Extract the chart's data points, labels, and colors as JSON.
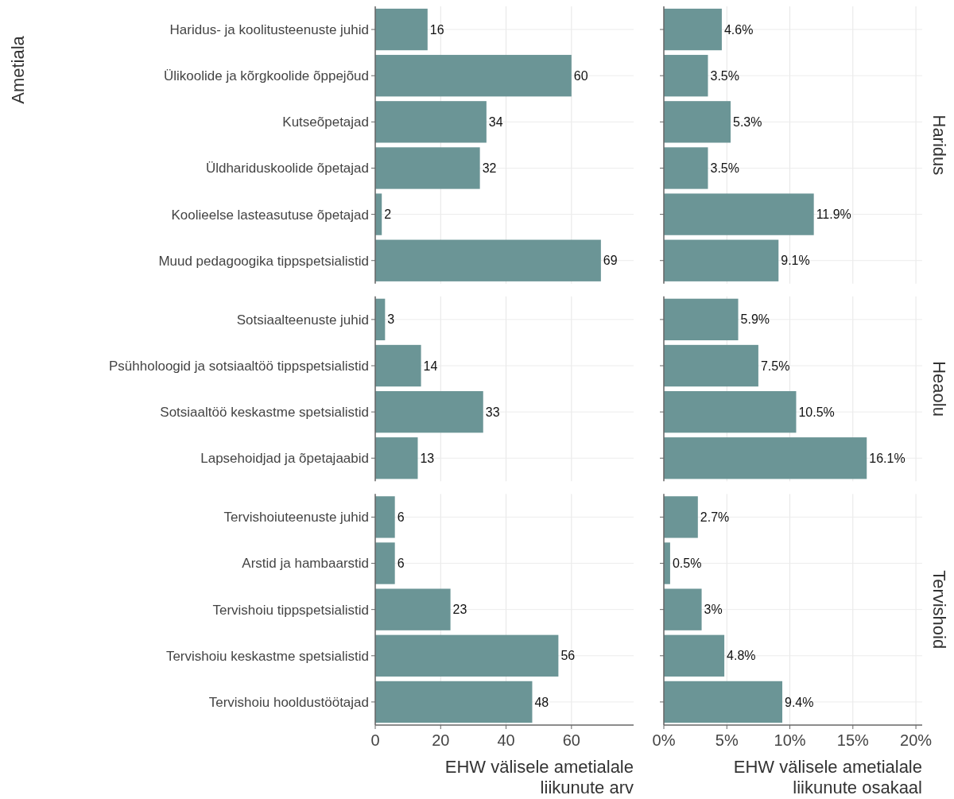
{
  "chart_data": [
    {
      "type": "bar",
      "orientation": "horizontal",
      "ylabel": "Ametiala",
      "categories": [
        "Haridus- ja koolitusteenuste juhid",
        "Ülikoolide ja kõrgkoolide õppejõud",
        "Kutseõpetajad",
        "Üldhariduskoolide õpetajad",
        "Koolieelse lasteasutuse õpetajad",
        "Muud pedagoogika tippspetsialistid"
      ],
      "values": [
        16,
        60,
        34,
        32,
        2,
        69
      ],
      "color": "#6b9596",
      "data_labels": true,
      "xlim": [
        0,
        79
      ],
      "xticks": [
        0,
        20,
        40,
        60
      ],
      "tick_labels": "y",
      "grid": true
    },
    {
      "type": "bar",
      "orientation": "horizontal",
      "title": "Haridus",
      "categories": [
        null,
        null,
        null,
        null,
        null,
        null
      ],
      "values": [
        4.6,
        3.5,
        5.3,
        3.5,
        11.9,
        9.1
      ],
      "value_labels": [
        "4.6%",
        "3.5%",
        "5.3%",
        "3.5%",
        "11.9%",
        "9.1%"
      ],
      "color": "#6b9596",
      "xlim": [
        0,
        20.5
      ],
      "xticks": [
        0,
        5,
        10,
        15,
        20
      ],
      "tick_labels": false,
      "grid": true
    },
    {
      "type": "bar",
      "orientation": "horizontal",
      "categories": [
        "Sotsiaalteenuste juhid",
        "Psühholoogid ja sotsiaaltöö tippspetsialistid",
        "Sotsiaaltöö keskastme spetsialistid",
        "Lapsehoidjad ja õpetajaabid"
      ],
      "values": [
        3,
        14,
        33,
        13
      ],
      "color": "#6b9596",
      "data_labels": true,
      "xlim": [
        0,
        79
      ],
      "xticks": [
        0,
        20,
        40,
        60
      ],
      "tick_labels": "y",
      "grid": true
    },
    {
      "type": "bar",
      "orientation": "horizontal",
      "title": "Heaolu",
      "categories": [
        null,
        null,
        null,
        null
      ],
      "values": [
        5.9,
        7.5,
        10.5,
        16.1
      ],
      "value_labels": [
        "5.9%",
        "7.5%",
        "10.5%",
        "16.1%"
      ],
      "color": "#6b9596",
      "xlim": [
        0,
        20.5
      ],
      "xticks": [
        0,
        5,
        10,
        15,
        20
      ],
      "tick_labels": false,
      "grid": true
    },
    {
      "type": "bar",
      "orientation": "horizontal",
      "xlabel": "EHW välisele ametialale\nliikunute arv",
      "categories": [
        "Tervishoiuteenuste juhid",
        "Arstid ja hambaarstid",
        "Tervishoiu tippspetsialistid",
        "Tervishoiu keskastme spetsialistid",
        "Tervishoiu hooldustöötajad"
      ],
      "values": [
        6,
        6,
        23,
        56,
        48
      ],
      "color": "#6b9596",
      "data_labels": true,
      "xlim": [
        0,
        79
      ],
      "xticks": [
        0,
        20,
        40,
        60
      ],
      "grid": true
    },
    {
      "type": "bar",
      "orientation": "horizontal",
      "title": "Tervishoid",
      "xlabel": "EHW välisele ametialale\nliikunute osakaal",
      "categories": [
        null,
        null,
        null,
        null,
        null
      ],
      "values": [
        2.7,
        0.5,
        3,
        4.8,
        9.4
      ],
      "value_labels": [
        "2.7%",
        "0.5%",
        "3%",
        "4.8%",
        "9.4%"
      ],
      "color": "#6b9596",
      "xlim": [
        0,
        20.5
      ],
      "xticks": [
        {
          "value": 0,
          "label": "0%"
        },
        {
          "value": 5,
          "label": "5%"
        },
        {
          "value": 10,
          "label": "10%"
        },
        {
          "value": 15,
          "label": "15%"
        },
        {
          "value": 20,
          "label": "20%"
        }
      ],
      "tick_labels": "x",
      "grid": true
    }
  ]
}
